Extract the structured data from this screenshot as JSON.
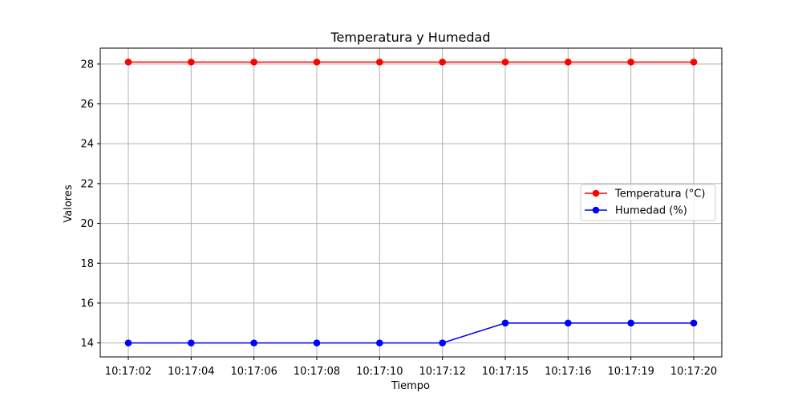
{
  "chart_data": {
    "type": "line",
    "title": "Temperatura y Humedad",
    "xlabel": "Tiempo",
    "ylabel": "Valores",
    "categories": [
      "10:17:02",
      "10:17:04",
      "10:17:06",
      "10:17:08",
      "10:17:10",
      "10:17:12",
      "10:17:15",
      "10:17:16",
      "10:17:19",
      "10:17:20"
    ],
    "ylim": [
      13.3,
      28.8
    ],
    "yticks": [
      14,
      16,
      18,
      20,
      22,
      24,
      26,
      28
    ],
    "grid": true,
    "legend_position": "center-right",
    "series": [
      {
        "name": "Temperatura (°C)",
        "color": "#ff0000",
        "marker": "circle",
        "values": [
          28.1,
          28.1,
          28.1,
          28.1,
          28.1,
          28.1,
          28.1,
          28.1,
          28.1,
          28.1
        ]
      },
      {
        "name": "Humedad (%)",
        "color": "#0000ff",
        "marker": "circle",
        "values": [
          14,
          14,
          14,
          14,
          14,
          14,
          15,
          15,
          15,
          15
        ]
      }
    ]
  }
}
